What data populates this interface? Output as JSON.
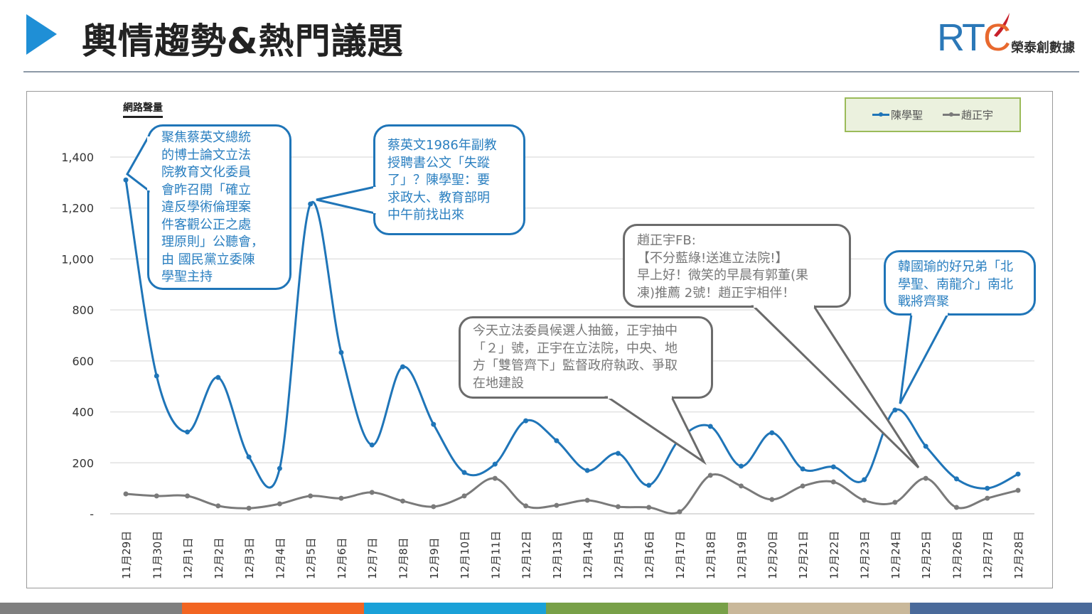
{
  "header": {
    "title": "輿情趨勢&熱門議題",
    "logo_text": "RTC",
    "logo_subtitle": "榮泰創數據"
  },
  "colors": {
    "accent": "#1f8fd6",
    "series1": "#1f75b8",
    "series2": "#7a7a7a",
    "bars": [
      "#7f7f7f",
      "#f26522",
      "#1aa1d8",
      "#78a048",
      "#c9b89a",
      "#4a6a9a"
    ]
  },
  "chart_data": {
    "type": "line",
    "title": "",
    "ylabel": "網路聲量",
    "xlabel": "",
    "ylim": [
      0,
      1400
    ],
    "yticks": [
      0,
      200,
      400,
      600,
      800,
      1000,
      1200,
      1400
    ],
    "ytick_labels": [
      "-",
      "200",
      "400",
      "600",
      "800",
      "1,000",
      "1,200",
      "1,400"
    ],
    "grid": true,
    "legend": "top-right",
    "categories": [
      "11月29日",
      "11月30日",
      "12月1日",
      "12月2日",
      "12月3日",
      "12月4日",
      "12月5日",
      "12月6日",
      "12月7日",
      "12月8日",
      "12月9日",
      "12月10日",
      "12月11日",
      "12月12日",
      "12月13日",
      "12月14日",
      "12月15日",
      "12月16日",
      "12月17日",
      "12月18日",
      "12月19日",
      "12月20日",
      "12月21日",
      "12月22日",
      "12月23日",
      "12月24日",
      "12月25日",
      "12月26日",
      "12月27日",
      "12月28日"
    ],
    "series": [
      {
        "name": "陳學聖",
        "values": [
          1310,
          541,
          321,
          535,
          223,
          178,
          1216,
          633,
          270,
          577,
          351,
          162,
          195,
          365,
          287,
          170,
          237,
          112,
          293,
          343,
          187,
          318,
          176,
          184,
          134,
          407,
          265,
          137,
          100,
          156
        ]
      },
      {
        "name": "趙正宇",
        "values": [
          78,
          70,
          70,
          31,
          22,
          39,
          70,
          61,
          84,
          50,
          28,
          70,
          139,
          31,
          33,
          53,
          28,
          25,
          8,
          151,
          109,
          56,
          109,
          125,
          53,
          45,
          139,
          25,
          61,
          92
        ]
      }
    ],
    "annotations": [
      {
        "style": "blue",
        "lines": [
          "聚焦蔡英文總統",
          "的博士論文立法",
          "院教育文化委員",
          "會昨召開「確立",
          "違反學術倫理案",
          "件客觀公正之處",
          "理原則」公聽會，",
          "由 國民黨立委陳",
          "學聖主持"
        ]
      },
      {
        "style": "blue",
        "lines": [
          "蔡英文1986年副教",
          "授聘書公文「失蹤",
          "了」？陳學聖：要",
          "求政大、教育部明",
          "中午前找出來"
        ]
      },
      {
        "style": "gray",
        "lines": [
          "今天立法委員候選人抽籤，正宇抽中",
          "「２」號，正宇在立法院，中央、地",
          "方「雙管齊下」監督政府執政、爭取",
          "在地建設"
        ]
      },
      {
        "style": "gray",
        "lines": [
          "趙正宇FB:",
          "【不分藍綠!送進立法院!】",
          "早上好！微笑的早晨有郭董(果",
          "凍)推薦 2號！趙正宇相伴！"
        ]
      },
      {
        "style": "blue",
        "lines": [
          "韓國瑜的好兄弟「北",
          "學聖、南龍介」南北",
          "戰將齊聚"
        ]
      }
    ]
  }
}
